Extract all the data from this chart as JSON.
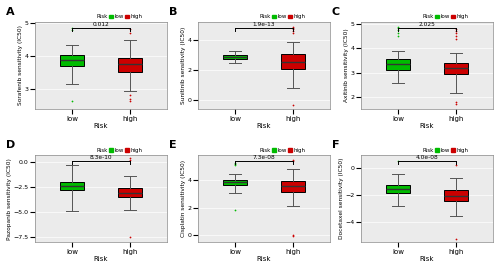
{
  "panels": [
    {
      "label": "A",
      "ylabel": "Sorafenib sensitivity (IC50)",
      "pvalue": "0.012",
      "low": {
        "median": 3.9,
        "q1": 3.7,
        "q3": 4.05,
        "whislo": 3.15,
        "whishi": 4.35,
        "fliers": [
          2.65,
          4.8,
          4.85
        ]
      },
      "high": {
        "median": 3.78,
        "q1": 3.52,
        "q3": 3.95,
        "whislo": 2.95,
        "whishi": 4.5,
        "fliers": [
          2.72,
          2.65,
          4.72,
          4.82,
          2.82
        ]
      },
      "ylim": [
        2.4,
        5.05
      ],
      "yticks": [
        3.0,
        4.0,
        5.0
      ]
    },
    {
      "label": "B",
      "ylabel": "Sunitinib sensitivity (IC50)",
      "pvalue": "1.9e-13",
      "low": {
        "median": 2.85,
        "q1": 2.72,
        "q3": 2.98,
        "whislo": 2.45,
        "whishi": 3.25,
        "fliers": []
      },
      "high": {
        "median": 2.55,
        "q1": 2.1,
        "q3": 3.05,
        "whislo": 0.8,
        "whishi": 3.85,
        "fliers": [
          -0.3,
          4.45,
          4.6,
          4.7,
          4.78,
          4.82
        ]
      },
      "ylim": [
        -0.6,
        5.2
      ],
      "yticks": [
        0.0,
        2.0,
        4.0
      ]
    },
    {
      "label": "C",
      "ylabel": "Axitinib sensitivity (IC50)",
      "pvalue": "2.025",
      "low": {
        "median": 3.35,
        "q1": 3.1,
        "q3": 3.55,
        "whislo": 2.6,
        "whishi": 3.9,
        "fliers": [
          4.5,
          4.65,
          4.75,
          4.82,
          4.9
        ]
      },
      "high": {
        "median": 3.2,
        "q1": 2.95,
        "q3": 3.42,
        "whislo": 2.15,
        "whishi": 3.82,
        "fliers": [
          1.82,
          1.72,
          4.4,
          4.52,
          4.65,
          4.72,
          4.8
        ]
      },
      "ylim": [
        1.5,
        5.1
      ],
      "yticks": [
        2.0,
        3.0,
        4.0,
        5.0
      ]
    },
    {
      "label": "D",
      "ylabel": "Pazopanib sensitivity (IC50)",
      "pvalue": "8.3e-10",
      "low": {
        "median": -2.45,
        "q1": -2.82,
        "q3": -2.05,
        "whislo": -4.9,
        "whishi": -0.35,
        "fliers": []
      },
      "high": {
        "median": -3.05,
        "q1": -3.45,
        "q3": -2.55,
        "whislo": -4.75,
        "whishi": -1.45,
        "fliers": [
          -7.45,
          0.22,
          0.35
        ]
      },
      "ylim": [
        -8.0,
        0.7
      ],
      "yticks": [
        -7.5,
        -5.0,
        -2.5,
        0.0
      ]
    },
    {
      "label": "E",
      "ylabel": "Cisplatin sensitivity (IC50)",
      "pvalue": "7.3e-08",
      "low": {
        "median": 3.82,
        "q1": 3.62,
        "q3": 3.98,
        "whislo": 3.05,
        "whishi": 4.42,
        "fliers": [
          1.85,
          5.05,
          5.15,
          5.22
        ]
      },
      "high": {
        "median": 3.55,
        "q1": 3.15,
        "q3": 3.95,
        "whislo": 2.15,
        "whishi": 4.75,
        "fliers": [
          -0.05,
          0.05,
          5.32,
          5.42
        ]
      },
      "ylim": [
        -0.5,
        5.8
      ],
      "yticks": [
        0.0,
        2.0,
        4.0
      ]
    },
    {
      "label": "F",
      "ylabel": "Docetaxel sensitivity (IC50)",
      "pvalue": "4.0e-08",
      "low": {
        "median": -1.52,
        "q1": -1.82,
        "q3": -1.22,
        "whislo": -2.82,
        "whishi": -0.45,
        "fliers": [
          0.52
        ]
      },
      "high": {
        "median": -2.05,
        "q1": -2.42,
        "q3": -1.65,
        "whislo": -3.52,
        "whishi": -0.75,
        "fliers": [
          -5.22,
          0.22
        ]
      },
      "ylim": [
        -5.5,
        1.0
      ],
      "yticks": [
        -4.0,
        -2.0,
        0.0
      ]
    }
  ],
  "low_color": "#00BB00",
  "high_color": "#CC0000",
  "xlabel": "Risk",
  "bg_color": "#ebebeb",
  "flier_marker": ".",
  "flier_size": 1.8,
  "box_width": 0.42
}
